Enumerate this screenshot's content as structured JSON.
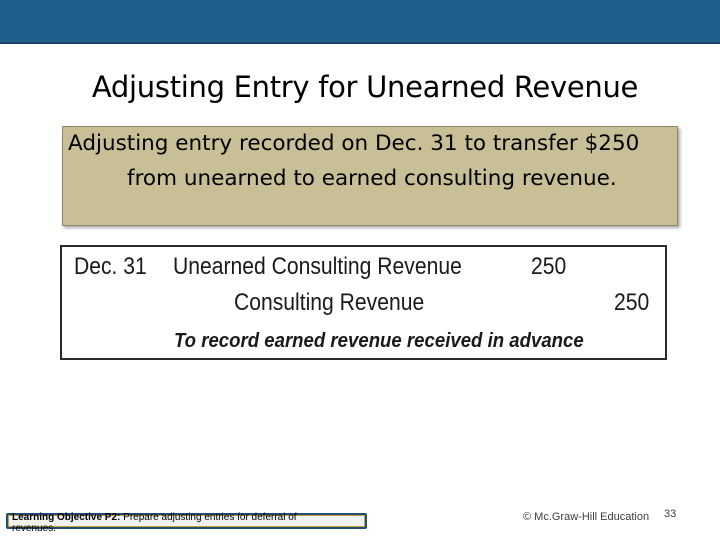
{
  "slide": {
    "title": "Adjusting Entry for Unearned Revenue",
    "description_line1": "Adjusting entry recorded on Dec. 31 to transfer $250",
    "description_line2": "from unearned to earned consulting revenue."
  },
  "journal_entry": {
    "date": "Dec. 31",
    "debit_account": "Unearned Consulting Revenue",
    "debit_amount": "250",
    "credit_account": "Consulting Revenue",
    "credit_amount": "250",
    "memo": "To record earned revenue received in advance"
  },
  "footer": {
    "objective_label": "Learning Objective P2:",
    "objective_text": "Prepare adjusting entries for deferral of revenues.",
    "copyright": "© Mc.Graw-Hill Education",
    "page_number": "33"
  },
  "colors": {
    "top_bar": "#1f5f8b",
    "description_box": "#c8bf96"
  }
}
